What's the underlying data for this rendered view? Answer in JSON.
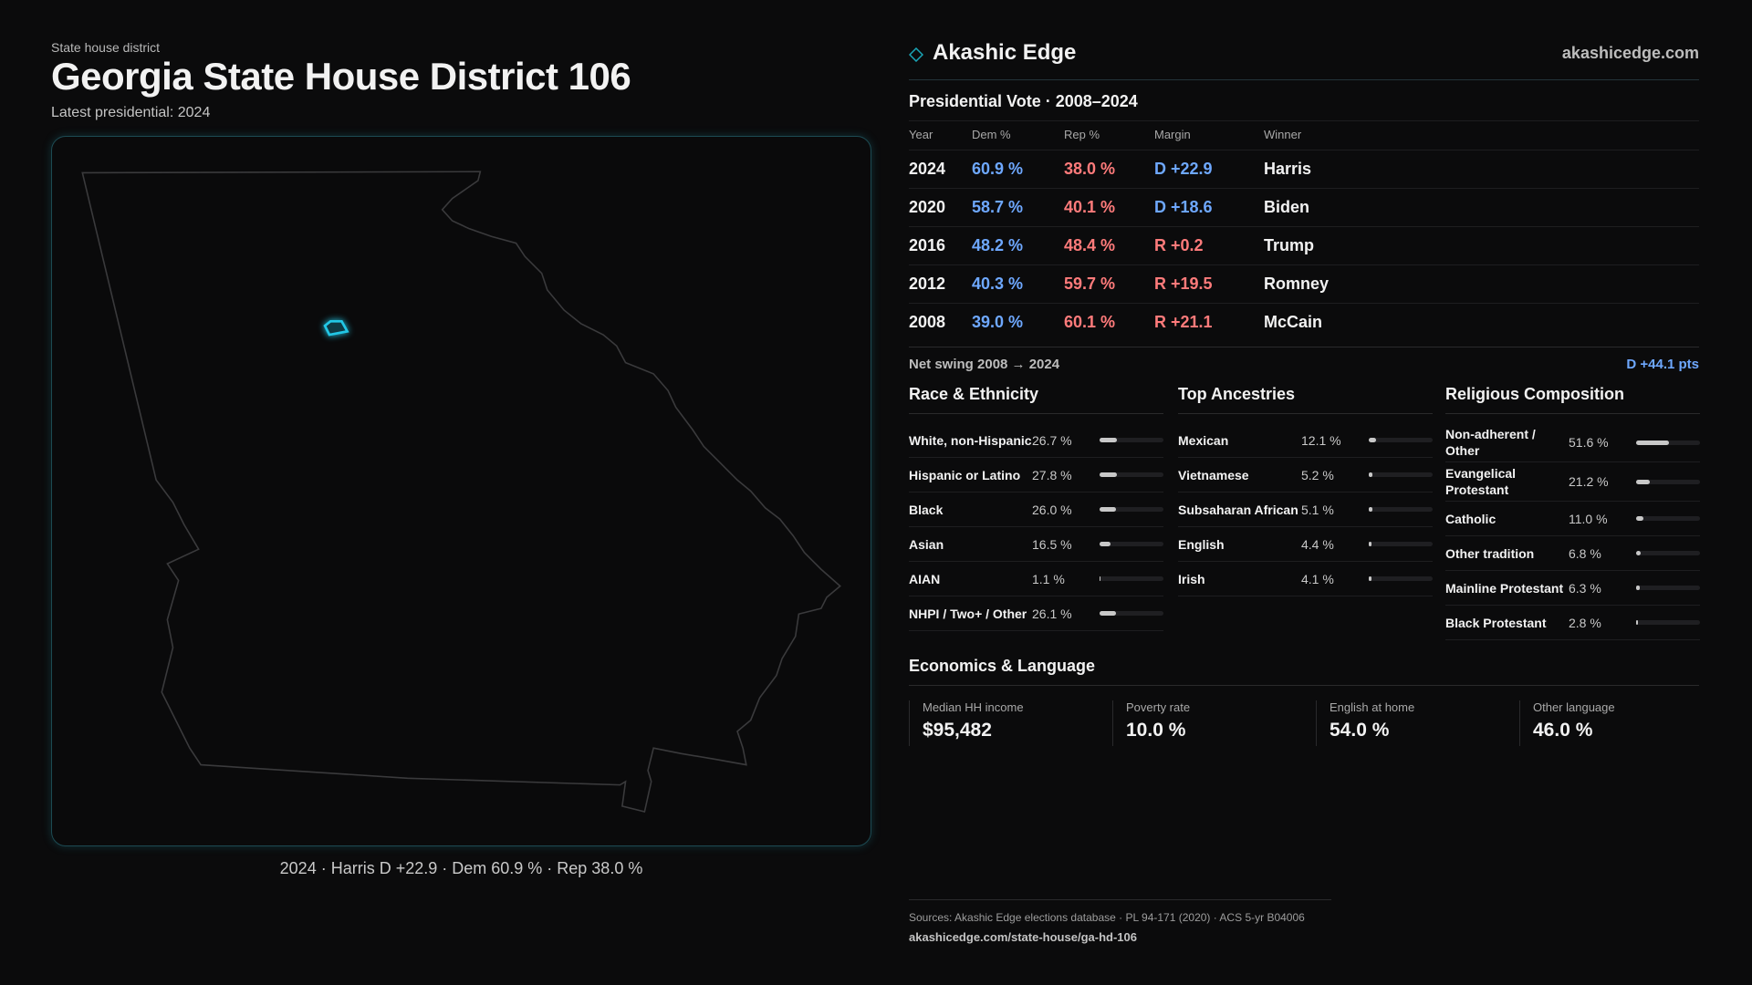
{
  "header": {
    "kicker": "State house district",
    "title": "Georgia State House District 106",
    "subtitle": "Latest presidential: 2024"
  },
  "map": {
    "caption": "2024 · Harris D +22.9 · Dem 60.9 % · Rep 38.0 %"
  },
  "brand": {
    "name": "Akashic Edge",
    "url": "akashicedge.com"
  },
  "presidential": {
    "title": "Presidential Vote · 2008–2024",
    "columns": [
      "Year",
      "Dem %",
      "Rep %",
      "Margin",
      "Winner"
    ],
    "rows": [
      [
        "2024",
        "60.9 %",
        "38.0 %",
        "D +22.9",
        "Harris"
      ],
      [
        "2020",
        "58.7 %",
        "40.1 %",
        "D +18.6",
        "Biden"
      ],
      [
        "2016",
        "48.2 %",
        "48.4 %",
        "R +0.2",
        "Trump"
      ],
      [
        "2012",
        "40.3 %",
        "59.7 %",
        "R +19.5",
        "Romney"
      ],
      [
        "2008",
        "39.0 %",
        "60.1 %",
        "R +21.1",
        "McCain"
      ]
    ],
    "swing_label": "Net swing 2008 → 2024",
    "swing_value": "D +44.1 pts"
  },
  "race": {
    "title": "Race & Ethnicity",
    "items": [
      {
        "label": "White, non-Hispanic",
        "value": 26.7,
        "value_label": "26.7 %"
      },
      {
        "label": "Hispanic or Latino",
        "value": 27.8,
        "value_label": "27.8 %"
      },
      {
        "label": "Black",
        "value": 26.0,
        "value_label": "26.0 %"
      },
      {
        "label": "Asian",
        "value": 16.5,
        "value_label": "16.5 %"
      },
      {
        "label": "AIAN",
        "value": 1.1,
        "value_label": "1.1 %"
      },
      {
        "label": "NHPI / Two+ / Other",
        "value": 26.1,
        "value_label": "26.1 %"
      }
    ]
  },
  "ancestries": {
    "title": "Top Ancestries",
    "items": [
      {
        "label": "Mexican",
        "value": 12.1,
        "value_label": "12.1 %"
      },
      {
        "label": "Vietnamese",
        "value": 5.2,
        "value_label": "5.2 %"
      },
      {
        "label": "Subsaharan African",
        "value": 5.1,
        "value_label": "5.1 %"
      },
      {
        "label": "English",
        "value": 4.4,
        "value_label": "4.4 %"
      },
      {
        "label": "Irish",
        "value": 4.1,
        "value_label": "4.1 %"
      }
    ]
  },
  "religion": {
    "title": "Religious Composition",
    "items": [
      {
        "label": "Non-adherent / Other",
        "value": 51.6,
        "value_label": "51.6 %"
      },
      {
        "label": "Evangelical Protestant",
        "value": 21.2,
        "value_label": "21.2 %"
      },
      {
        "label": "Catholic",
        "value": 11.0,
        "value_label": "11.0 %"
      },
      {
        "label": "Other tradition",
        "value": 6.8,
        "value_label": "6.8 %"
      },
      {
        "label": "Mainline Protestant",
        "value": 6.3,
        "value_label": "6.3 %"
      },
      {
        "label": "Black Protestant",
        "value": 2.8,
        "value_label": "2.8 %"
      }
    ]
  },
  "economics": {
    "title": "Economics & Language",
    "cards": [
      {
        "label": "Median HH income",
        "value": "$95,482"
      },
      {
        "label": "Poverty rate",
        "value": "10.0 %"
      },
      {
        "label": "English at home",
        "value": "54.0 %"
      },
      {
        "label": "Other language",
        "value": "46.0 %"
      }
    ]
  },
  "footer": {
    "sources": "Sources: Akashic Edge elections database · PL 94-171 (2020) · ACS 5-yr B04006",
    "url": "akashicedge.com/state-house/ga-hd-106"
  }
}
